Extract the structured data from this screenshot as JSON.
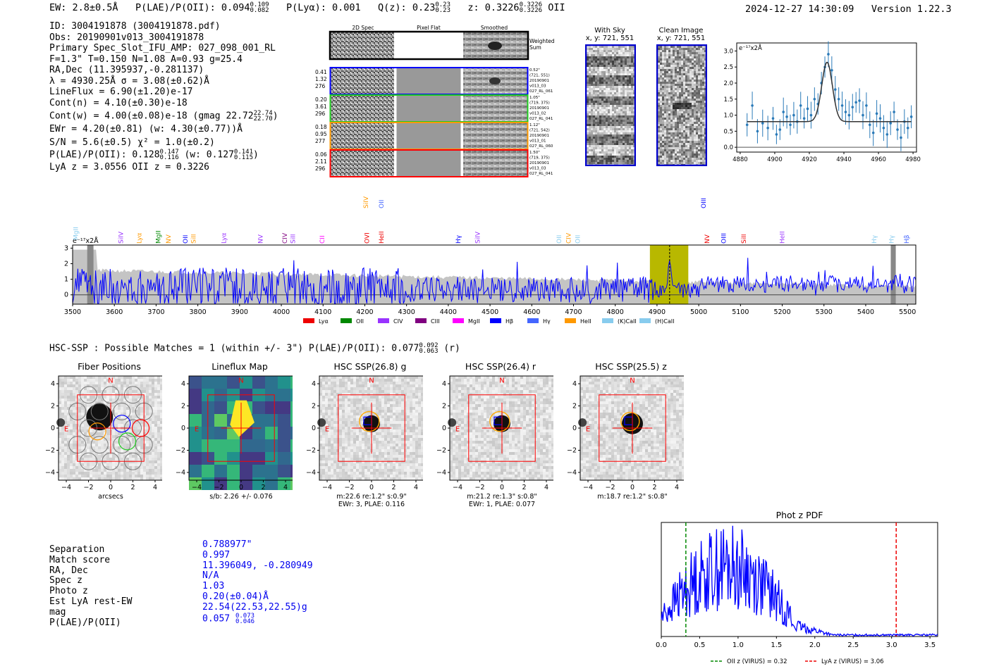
{
  "header": {
    "ew": "EW: 2.8±0.5Å",
    "plae_label": "P(LAE)/P(OII): 0.094",
    "plae_hi": "0.109",
    "plae_lo": "0.082",
    "plya": "P(Lyα): 0.001",
    "qz_label": "Q(z): 0.23",
    "qz_hi": "0.23",
    "qz_lo": "0.23",
    "z_label": "z: 0.3226",
    "z_hi": "0.3226",
    "z_lo": "0.3226",
    "z_line": "OII",
    "timestamp": "2024-12-27 14:30:09",
    "version": "Version 1.22.3"
  },
  "info": {
    "id": "ID: 3004191878 (3004191878.pdf)",
    "obs": "Obs: 20190901v013_3004191878",
    "primary": "Primary Spec_Slot_IFU_AMP: 027_098_001_RL",
    "fparams": "F=1.3\"  T=0.150  N=1.08  A=0.93  g=25.4",
    "radec": "RA,Dec (11.395937,-0.281137)",
    "lambda": "λ = 4930.25Å  σ = 3.08(±0.62)Å",
    "lineflux": "LineFlux = 6.90(±1.20)e-17",
    "contn": "Cont(n) = 4.10(±0.30)e-18",
    "contw": "Cont(w) = 4.00(±0.08)e-18 (gmag 22.72",
    "contw_hi": "22.74",
    "contw_lo": "22.70",
    "contw_close": ")",
    "ewr": "EWr = 4.20(±0.81) (w: 4.30(±0.77))Å",
    "sn": "S/N = 5.6(±0.5)  χ² = 1.0(±0.2)",
    "plae": "P(LAE)/P(OII): 0.128",
    "plae_hi": "0.147",
    "plae_lo": "0.116",
    "plae_w": "(w: 0.127",
    "plae_w_hi": "0.141",
    "plae_w_lo": "0.115",
    "plae_w_close": ")",
    "lya": "LyA z = 3.0556  OII z = 0.3226"
  },
  "cutouts": {
    "col_headers": [
      "2D Spec",
      "Pixel Flat",
      "Smoothed"
    ],
    "weighted_sum": "Weighted Sum",
    "rows": [
      {
        "left": [
          "0.41",
          "1.32",
          "276"
        ],
        "right": [
          "0.52\"",
          "(721, 551)",
          "20190901",
          "v013_03",
          "027_RL_061"
        ],
        "color": "#0000ff"
      },
      {
        "left": [
          "0.20",
          "3.61",
          "296"
        ],
        "right": [
          "1.05\"",
          "(719, 375)",
          "20190901",
          "v013_02",
          "027_RL_041"
        ],
        "color": "#22cc22"
      },
      {
        "left": [
          "0.18",
          "0.95",
          "277"
        ],
        "right": [
          "1.12\"",
          "(721, 542)",
          "20190901",
          "v013_01",
          "027_RL_060"
        ],
        "color": "#ff9900"
      },
      {
        "left": [
          "0.06",
          "2.11",
          "296"
        ],
        "right": [
          "1.50\"",
          "(719, 375)",
          "20190901",
          "v013_03",
          "027_RL_041"
        ],
        "color": "#ff0000"
      }
    ],
    "with_sky": "With Sky",
    "with_sky_xy": "x, y: 721, 551",
    "clean": "Clean Image",
    "clean_xy": "x, y: 721, 551"
  },
  "zoom_chart": {
    "ylabel": "e⁻¹⁷x2Å",
    "xticks": [
      "4880",
      "4900",
      "4920",
      "4940",
      "4960",
      "4980"
    ],
    "yticks": [
      "0.0",
      "0.5",
      "1.0",
      "1.5",
      "2.0",
      "2.5",
      "3.0"
    ]
  },
  "spectrum": {
    "ylabel": "e⁻¹⁷x2Å",
    "xticks": [
      "3500",
      "3600",
      "3700",
      "3800",
      "3900",
      "4000",
      "4100",
      "4200",
      "4300",
      "4400",
      "4500",
      "4600",
      "4700",
      "4800",
      "4900",
      "5000",
      "5100",
      "5200",
      "5300",
      "5400",
      "5500"
    ],
    "yticks": [
      "0",
      "1",
      "2",
      "3"
    ],
    "legend": [
      {
        "label": "Lyα",
        "color": "#ee0000"
      },
      {
        "label": "OII",
        "color": "#008800"
      },
      {
        "label": "CIV",
        "color": "#9933ff"
      },
      {
        "label": "CIII",
        "color": "#800080"
      },
      {
        "label": "MgII",
        "color": "#ff00ff"
      },
      {
        "label": "Hβ",
        "color": "#0000ff"
      },
      {
        "label": "Hγ",
        "color": "#4466ff"
      },
      {
        "label": "HeII",
        "color": "#ff9900"
      },
      {
        "label": "(K)CaII",
        "color": "#88ccee"
      },
      {
        "label": "(H)CaII",
        "color": "#88ccee"
      }
    ],
    "lines": [
      {
        "label": "MgII",
        "color": "#88ccee",
        "x": 3508,
        "row": 0
      },
      {
        "label": "SiIV",
        "color": "#9933ff",
        "x": 3616,
        "row": 1
      },
      {
        "label": "Lyα",
        "color": "#ff9900",
        "x": 3660,
        "row": 1
      },
      {
        "label": "MgII",
        "color": "#008800",
        "x": 3705,
        "row": 1
      },
      {
        "label": "NV",
        "color": "#ff9900",
        "x": 3730,
        "row": 1
      },
      {
        "label": "OII",
        "color": "#0000ff",
        "x": 3770,
        "row": 1
      },
      {
        "label": "SiII",
        "color": "#ff9900",
        "x": 3790,
        "row": 1
      },
      {
        "label": "Lyα",
        "color": "#9933ff",
        "x": 3862,
        "row": 1
      },
      {
        "label": "NV",
        "color": "#9933ff",
        "x": 3950,
        "row": 1
      },
      {
        "label": "CIV",
        "color": "#800080",
        "x": 4008,
        "row": 1
      },
      {
        "label": "SiII",
        "color": "#9933ff",
        "x": 4028,
        "row": 1
      },
      {
        "label": "CII",
        "color": "#ff00ff",
        "x": 4098,
        "row": 1
      },
      {
        "label": "OVI",
        "color": "#ee0000",
        "x": 4205,
        "row": 1
      },
      {
        "label": "HeII",
        "color": "#ee0000",
        "x": 4240,
        "row": 1
      },
      {
        "label": "SiIV",
        "color": "#ff9900",
        "x": 4203,
        "row": 2
      },
      {
        "label": "OII",
        "color": "#4466ff",
        "x": 4240,
        "row": 2
      },
      {
        "label": "Hγ",
        "color": "#0000ff",
        "x": 4424,
        "row": 1
      },
      {
        "label": "SiIV",
        "color": "#9933ff",
        "x": 4470,
        "row": 1
      },
      {
        "label": "OII",
        "color": "#88ccee",
        "x": 4665,
        "row": 1
      },
      {
        "label": "CIV",
        "color": "#ff9900",
        "x": 4688,
        "row": 1
      },
      {
        "label": "OII",
        "color": "#88ccee",
        "x": 4710,
        "row": 1
      },
      {
        "label": "NV",
        "color": "#ee0000",
        "x": 5020,
        "row": 1
      },
      {
        "label": "OIII",
        "color": "#0000ff",
        "x": 5060,
        "row": 1
      },
      {
        "label": "SiII",
        "color": "#ee0000",
        "x": 5108,
        "row": 1
      },
      {
        "label": "HeII",
        "color": "#9933ff",
        "x": 5200,
        "row": 1
      },
      {
        "label": "OIII",
        "color": "#0000ff",
        "x": 5012,
        "row": 2
      },
      {
        "label": "Hγ",
        "color": "#88ccee",
        "x": 5420,
        "row": 1
      },
      {
        "label": "Hγ",
        "color": "#88ccee",
        "x": 5462,
        "row": 1
      },
      {
        "label": "Hβ",
        "color": "#4466ff",
        "x": 5498,
        "row": 1
      }
    ]
  },
  "hsc": {
    "line_a": "HSC-SSP : Possible Matches = 1 (within +/- 3\")  P(LAE)/P(OII): 0.077",
    "hi": "0.092",
    "lo": "0.063",
    "line_b": "(r)",
    "panels": [
      {
        "title": "Fiber Positions",
        "cap1": "arcsecs",
        "cap2": ""
      },
      {
        "title": "Lineflux Map",
        "cap1": "s/b: 2.26 +/- 0.076",
        "cap2": ""
      },
      {
        "title": "HSC SSP(26.8) g",
        "cap1": "m:22.6  re:1.2\"  s:0.9\"",
        "cap2": "EWr: 3, PLAE: 0.116"
      },
      {
        "title": "HSC SSP(26.4) r",
        "cap1": "m:21.2  re:1.3\"  s:0.8\"",
        "cap2": "EWr: 1, PLAE: 0.077"
      },
      {
        "title": "HSC SSP(25.5) z",
        "cap1": "m:18.7  re:1.2\"  s:0.8\"",
        "cap2": ""
      }
    ],
    "ticks": [
      "−4",
      "−2",
      "0",
      "2",
      "4"
    ],
    "n_label": "N",
    "e_label": "E"
  },
  "match": {
    "labels": [
      "Separation",
      "Match score",
      "RA, Dec",
      "Spec z",
      "Photo z",
      "Est LyA rest-EW",
      "mag",
      "P(LAE)/P(OII)"
    ],
    "values": [
      "0.788977\"",
      "0.997",
      "11.396049, -0.280949",
      "N/A",
      "1.03",
      "0.20(±0.04)Å",
      "22.54(22.53,22.55)g",
      "0.057"
    ],
    "plae_hi": "0.073",
    "plae_lo": "0.046"
  },
  "chart_data": [
    {
      "type": "line",
      "title": "",
      "xlabel": "",
      "ylabel": "e⁻¹⁷x2Å",
      "xlim": [
        4878,
        4982
      ],
      "ylim": [
        -0.15,
        3.25
      ],
      "x": [
        4884,
        4887,
        4890,
        4893,
        4896,
        4899,
        4901,
        4903,
        4905,
        4907,
        4909,
        4911,
        4913,
        4915,
        4917,
        4919,
        4921,
        4923,
        4925,
        4927,
        4929,
        4931,
        4933,
        4935,
        4937,
        4939,
        4941,
        4943,
        4945,
        4947,
        4949,
        4951,
        4953,
        4955,
        4957,
        4959,
        4961,
        4963,
        4965,
        4967,
        4969,
        4971,
        4973,
        4975,
        4977,
        4979
      ],
      "series": [
        {
          "name": "data",
          "values": [
            0.7,
            1.3,
            0.5,
            0.75,
            0.6,
            0.9,
            0.4,
            0.55,
            1.1,
            0.95,
            0.7,
            1.0,
            0.8,
            1.3,
            0.9,
            1.2,
            1.0,
            1.5,
            1.35,
            2.0,
            2.5,
            2.9,
            2.4,
            1.8,
            1.5,
            1.3,
            1.1,
            1.0,
            1.25,
            1.4,
            1.45,
            1.0,
            1.3,
            0.7,
            0.45,
            1.05,
            0.9,
            0.6,
            0.4,
            0.75,
            1.1,
            0.55,
            0.3,
            0.8,
            0.6,
            0.95
          ]
        },
        {
          "name": "fit",
          "model": "gaussian",
          "continuum": 0.8,
          "amplitude": 1.85,
          "center": 4930.25,
          "sigma": 3.08
        }
      ]
    },
    {
      "type": "line",
      "title": "",
      "xlabel": "",
      "ylabel": "e⁻¹⁷x2Å",
      "xlim": [
        3500,
        5520
      ],
      "ylim": [
        -0.6,
        3.2
      ],
      "highlight": [
        4883,
        4975
      ],
      "emission_x": 4930.25,
      "series": [
        {
          "name": "flux",
          "color": "#0000ff"
        },
        {
          "name": "error",
          "color": "#bbbbbb"
        }
      ]
    },
    {
      "type": "line",
      "title": "Phot z PDF",
      "xlabel": "",
      "ylabel": "",
      "xlim": [
        0,
        3.6
      ],
      "ylim": [
        0,
        1
      ],
      "xticks": [
        "0.0",
        "0.5",
        "1.0",
        "1.5",
        "2.0",
        "2.5",
        "3.0",
        "3.5"
      ],
      "markers": [
        {
          "label": "OII z (VIRUS) = 0.32",
          "x": 0.32,
          "color": "#008800"
        },
        {
          "label": "LyA z (VIRUS) = 3.06",
          "x": 3.06,
          "color": "#ee0000"
        }
      ],
      "series": [
        {
          "name": "pdf",
          "color": "#0000ff"
        }
      ]
    }
  ]
}
